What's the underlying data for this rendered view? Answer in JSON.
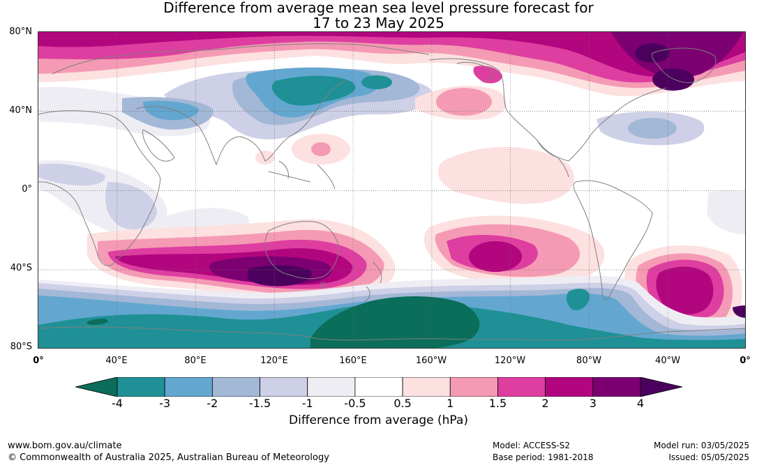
{
  "title_line1": "Difference from average mean sea level pressure forecast for",
  "title_line2": "17 to 23 May 2025",
  "lat_labels": [
    "80°N",
    "40°N",
    "0°",
    "40°S",
    "80°S"
  ],
  "lon_labels": [
    "0°",
    "40°E",
    "80°E",
    "120°E",
    "160°E",
    "160°W",
    "120°W",
    "80°W",
    "40°W",
    "0°"
  ],
  "colorbar": {
    "ticks": [
      "-4",
      "-3",
      "-2",
      "-1.5",
      "-1",
      "-0.5",
      "0.5",
      "1",
      "1.5",
      "2",
      "3",
      "4"
    ],
    "colors": [
      "#0a6e5a",
      "#1f9196",
      "#63a7d0",
      "#a3b7d6",
      "#cdd0e6",
      "#efedf4",
      "#ffffff",
      "#fde0e0",
      "#f59ab4",
      "#de3ea0",
      "#b2067f",
      "#7c0071",
      "#4c005e"
    ],
    "label": "Difference from average (hPa)"
  },
  "footer": {
    "website": "www.bom.gov.au/climate",
    "copyright": "© Commonwealth of Australia 2025, Australian Bureau of Meteorology",
    "model": "Model: ACCESS-S2",
    "base_period": "Base period: 1981-2018",
    "model_run": "Model run: 03/05/2025",
    "issued": "Issued: 05/05/2025"
  }
}
